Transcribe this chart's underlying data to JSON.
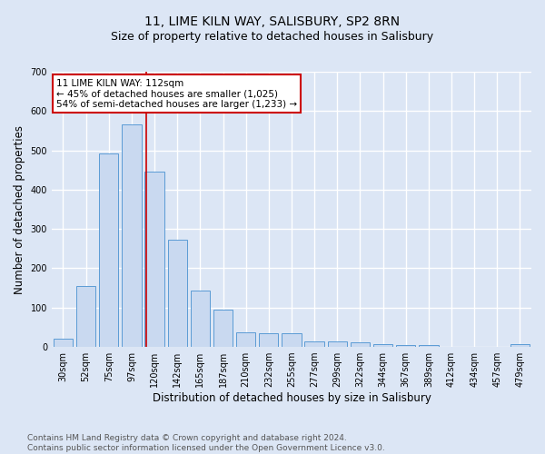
{
  "title": "11, LIME KILN WAY, SALISBURY, SP2 8RN",
  "subtitle": "Size of property relative to detached houses in Salisbury",
  "xlabel": "Distribution of detached houses by size in Salisbury",
  "ylabel": "Number of detached properties",
  "bar_labels": [
    "30sqm",
    "52sqm",
    "75sqm",
    "97sqm",
    "120sqm",
    "142sqm",
    "165sqm",
    "187sqm",
    "210sqm",
    "232sqm",
    "255sqm",
    "277sqm",
    "299sqm",
    "322sqm",
    "344sqm",
    "367sqm",
    "389sqm",
    "412sqm",
    "434sqm",
    "457sqm",
    "479sqm"
  ],
  "bar_heights": [
    22,
    155,
    492,
    567,
    447,
    273,
    144,
    96,
    36,
    35,
    34,
    15,
    14,
    12,
    7,
    4,
    4,
    0,
    0,
    0,
    6
  ],
  "bar_color": "#c9d9f0",
  "bar_edge_color": "#5b9bd5",
  "annotation_text": "11 LIME KILN WAY: 112sqm\n← 45% of detached houses are smaller (1,025)\n54% of semi-detached houses are larger (1,233) →",
  "annotation_box_color": "#ffffff",
  "annotation_border_color": "#cc0000",
  "ylim": [
    0,
    700
  ],
  "yticks": [
    0,
    100,
    200,
    300,
    400,
    500,
    600,
    700
  ],
  "bg_color": "#dce6f5",
  "plot_bg_color": "#dce6f5",
  "grid_color": "#ffffff",
  "footer": "Contains HM Land Registry data © Crown copyright and database right 2024.\nContains public sector information licensed under the Open Government Licence v3.0.",
  "title_fontsize": 10,
  "subtitle_fontsize": 9,
  "xlabel_fontsize": 8.5,
  "ylabel_fontsize": 8.5,
  "tick_fontsize": 7,
  "annotation_fontsize": 7.5,
  "footer_fontsize": 6.5
}
